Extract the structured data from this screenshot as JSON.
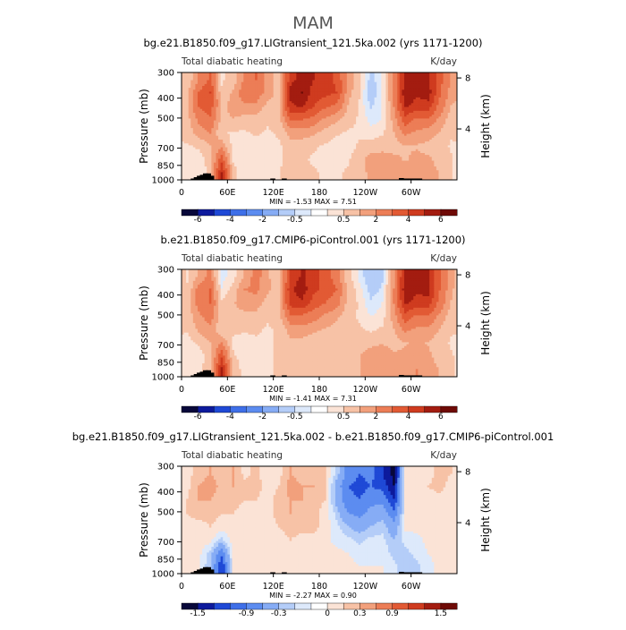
{
  "main_title": "MAM",
  "colors": {
    "text": "#000000",
    "axis": "#000000",
    "terrain": "#000000"
  },
  "chart_data": [
    {
      "type": "heatmap",
      "title": "bg.e21.B1850.f09_g17.LIGtransient_121.5ka.002 (yrs 1171-1200)",
      "left_label": "Total diabatic heating",
      "right_label": "K/day",
      "ylabel": "Pressure (mb)",
      "ylabel_right": "Height (km)",
      "x_ticks": [
        "0",
        "60E",
        "120E",
        "180",
        "120W",
        "60W"
      ],
      "x_tick_values": [
        0,
        60,
        120,
        180,
        240,
        300
      ],
      "xlim": [
        0,
        360
      ],
      "y_ticks": [
        "300",
        "400",
        "500",
        "700",
        "850",
        "1000"
      ],
      "y_tick_values": [
        300,
        400,
        500,
        700,
        850,
        1000
      ],
      "ylim": [
        1000,
        300
      ],
      "y_scale": "log",
      "height_ticks": [
        "8",
        "4"
      ],
      "height_tick_values": [
        8,
        4
      ],
      "stats": "MIN =   -1.53   MAX =    7.51",
      "colorbar": {
        "labels": [
          "-6",
          "-4",
          "-2",
          "-0.5",
          "0.5",
          "2",
          "4",
          "6"
        ],
        "colors": [
          "#08083a",
          "#0d1a9c",
          "#1f49d6",
          "#3e6fe8",
          "#5c8cf0",
          "#86acf5",
          "#b4cdf8",
          "#dde9fb",
          "#ffffff",
          "#fbe3d6",
          "#f7c2a6",
          "#f2a07c",
          "#ec7d56",
          "#e25a34",
          "#cf3b1f",
          "#a31c10",
          "#6e0a06"
        ]
      },
      "pattern": [
        [
          0.6,
          2.0,
          3.2,
          0.4,
          0.8,
          2.2,
          3.0,
          1.6,
          0.8,
          4.6,
          5.6,
          5.0,
          4.6,
          3.8,
          1.8,
          0.8,
          -0.8,
          0.0,
          2.2,
          5.4,
          5.0,
          5.0,
          3.4,
          1.8
        ],
        [
          1.0,
          3.0,
          4.0,
          0.6,
          1.4,
          2.6,
          2.6,
          1.6,
          1.0,
          5.4,
          6.0,
          4.6,
          4.4,
          4.0,
          1.6,
          0.6,
          -1.0,
          0.0,
          2.2,
          5.8,
          5.2,
          5.6,
          3.2,
          1.6
        ],
        [
          1.2,
          3.0,
          3.6,
          1.0,
          1.6,
          1.8,
          1.8,
          1.0,
          1.2,
          4.8,
          5.2,
          4.0,
          3.2,
          2.8,
          1.2,
          0.4,
          -0.6,
          0.0,
          2.0,
          5.2,
          4.6,
          4.6,
          2.6,
          1.2
        ],
        [
          1.0,
          2.2,
          2.8,
          1.0,
          1.2,
          1.0,
          1.0,
          0.6,
          1.0,
          3.0,
          3.0,
          2.6,
          1.8,
          1.4,
          0.8,
          0.4,
          -0.2,
          0.0,
          1.6,
          3.6,
          2.8,
          2.8,
          1.8,
          0.8
        ],
        [
          0.8,
          1.6,
          2.0,
          0.6,
          0.4,
          0.4,
          0.6,
          0.4,
          0.6,
          1.6,
          1.6,
          1.4,
          1.0,
          0.6,
          0.4,
          0.4,
          0.2,
          0.4,
          1.2,
          2.2,
          1.8,
          1.6,
          1.2,
          0.6
        ],
        [
          0.4,
          0.6,
          1.2,
          1.8,
          0.2,
          0.0,
          0.2,
          0.2,
          0.4,
          0.8,
          0.8,
          0.6,
          0.4,
          0.2,
          0.2,
          0.6,
          0.8,
          1.0,
          1.0,
          1.2,
          1.2,
          1.0,
          0.8,
          0.4
        ],
        [
          0.0,
          0.2,
          0.8,
          3.6,
          0.4,
          0.0,
          0.2,
          0.2,
          0.4,
          0.8,
          0.6,
          0.4,
          0.2,
          0.2,
          0.4,
          1.0,
          1.6,
          1.6,
          1.4,
          1.2,
          1.4,
          1.4,
          1.0,
          0.6
        ],
        [
          0.0,
          0.2,
          0.6,
          5.2,
          0.8,
          0.0,
          0.2,
          0.2,
          0.4,
          1.0,
          0.8,
          0.6,
          0.4,
          0.4,
          0.6,
          1.0,
          1.4,
          1.6,
          1.6,
          1.6,
          1.8,
          1.6,
          1.2,
          0.6
        ]
      ],
      "terrain_columns": [
        [
          4,
          998
        ],
        [
          8,
          998
        ],
        [
          12,
          985
        ],
        [
          16,
          970
        ],
        [
          20,
          955
        ],
        [
          24,
          945
        ],
        [
          28,
          930
        ],
        [
          32,
          930
        ],
        [
          36,
          955
        ],
        [
          116,
          985
        ],
        [
          131,
          985
        ],
        [
          284,
          980
        ],
        [
          290,
          985
        ],
        [
          296,
          985
        ],
        [
          302,
          985
        ],
        [
          308,
          985
        ]
      ]
    },
    {
      "type": "heatmap",
      "title": "b.e21.B1850.f09_g17.CMIP6-piControl.001 (yrs 1171-1200)",
      "left_label": "Total diabatic heating",
      "right_label": "K/day",
      "ylabel": "Pressure (mb)",
      "ylabel_right": "Height (km)",
      "x_ticks": [
        "0",
        "60E",
        "120E",
        "180",
        "120W",
        "60W"
      ],
      "x_tick_values": [
        0,
        60,
        120,
        180,
        240,
        300
      ],
      "xlim": [
        0,
        360
      ],
      "y_ticks": [
        "300",
        "400",
        "500",
        "700",
        "850",
        "1000"
      ],
      "y_tick_values": [
        300,
        400,
        500,
        700,
        850,
        1000
      ],
      "ylim": [
        1000,
        300
      ],
      "y_scale": "log",
      "height_ticks": [
        "8",
        "4"
      ],
      "height_tick_values": [
        8,
        4
      ],
      "stats": "MIN =   -1.41   MAX =    7.31",
      "colorbar": {
        "labels": [
          "-6",
          "-4",
          "-2",
          "-0.5",
          "0.5",
          "2",
          "4",
          "6"
        ],
        "colors": [
          "#08083a",
          "#0d1a9c",
          "#1f49d6",
          "#3e6fe8",
          "#5c8cf0",
          "#86acf5",
          "#b4cdf8",
          "#dde9fb",
          "#ffffff",
          "#fbe3d6",
          "#f7c2a6",
          "#f2a07c",
          "#ec7d56",
          "#e25a34",
          "#cf3b1f",
          "#a31c10",
          "#6e0a06"
        ]
      },
      "pattern": [
        [
          0.4,
          1.4,
          2.2,
          -0.2,
          0.2,
          1.4,
          2.4,
          1.4,
          0.6,
          4.2,
          5.2,
          4.4,
          3.6,
          2.4,
          0.8,
          -0.2,
          -1.0,
          -0.6,
          1.8,
          5.4,
          5.0,
          5.0,
          3.2,
          1.6
        ],
        [
          0.6,
          2.4,
          3.0,
          0.0,
          0.8,
          2.0,
          2.2,
          1.4,
          0.8,
          4.8,
          5.6,
          4.2,
          3.8,
          3.0,
          1.0,
          0.2,
          -0.8,
          -0.4,
          2.0,
          5.8,
          5.2,
          5.4,
          3.0,
          1.4
        ],
        [
          0.8,
          2.4,
          3.0,
          0.6,
          1.2,
          1.6,
          1.6,
          1.0,
          1.0,
          4.4,
          4.8,
          3.6,
          3.0,
          2.4,
          1.0,
          0.4,
          -0.4,
          0.0,
          2.0,
          5.2,
          4.6,
          4.6,
          2.6,
          1.2
        ],
        [
          0.8,
          1.8,
          2.4,
          0.8,
          1.0,
          1.0,
          1.0,
          0.6,
          1.0,
          2.8,
          2.8,
          2.4,
          1.8,
          1.4,
          0.8,
          0.4,
          0.0,
          0.2,
          1.6,
          3.6,
          2.8,
          2.8,
          1.8,
          0.8
        ],
        [
          0.6,
          1.4,
          1.8,
          0.6,
          0.6,
          0.6,
          0.6,
          0.4,
          0.6,
          1.6,
          1.6,
          1.4,
          1.2,
          1.0,
          0.6,
          0.6,
          0.4,
          0.6,
          1.2,
          2.2,
          1.8,
          1.8,
          1.2,
          0.6
        ],
        [
          0.2,
          0.6,
          1.2,
          2.0,
          0.4,
          0.2,
          0.4,
          0.4,
          0.6,
          1.0,
          1.0,
          0.8,
          0.8,
          0.6,
          0.6,
          0.8,
          1.0,
          1.2,
          1.0,
          1.2,
          1.4,
          1.2,
          0.8,
          0.4
        ],
        [
          0.2,
          0.2,
          0.8,
          3.8,
          0.6,
          0.2,
          0.4,
          0.4,
          0.6,
          1.0,
          0.8,
          0.6,
          0.6,
          0.6,
          0.8,
          1.2,
          1.8,
          1.8,
          1.4,
          1.4,
          1.6,
          1.4,
          1.0,
          0.6
        ],
        [
          0.2,
          0.4,
          0.8,
          5.2,
          1.0,
          0.2,
          0.4,
          0.4,
          0.6,
          1.2,
          1.0,
          0.8,
          0.6,
          0.6,
          0.8,
          1.2,
          1.6,
          1.8,
          1.8,
          1.8,
          2.0,
          1.6,
          1.2,
          0.6
        ]
      ],
      "terrain_columns": [
        [
          4,
          998
        ],
        [
          8,
          998
        ],
        [
          12,
          985
        ],
        [
          16,
          970
        ],
        [
          20,
          955
        ],
        [
          24,
          945
        ],
        [
          28,
          930
        ],
        [
          32,
          930
        ],
        [
          36,
          955
        ],
        [
          116,
          985
        ],
        [
          131,
          985
        ],
        [
          284,
          980
        ],
        [
          290,
          985
        ],
        [
          296,
          985
        ],
        [
          302,
          985
        ],
        [
          308,
          985
        ]
      ]
    },
    {
      "type": "heatmap",
      "title": "bg.e21.B1850.f09_g17.LIGtransient_121.5ka.002 - b.e21.B1850.f09_g17.CMIP6-piControl.001",
      "left_label": "Total diabatic heating",
      "right_label": "K/day",
      "ylabel": "Pressure (mb)",
      "ylabel_right": "Height (km)",
      "x_ticks": [
        "0",
        "60E",
        "120E",
        "180",
        "120W",
        "60W"
      ],
      "x_tick_values": [
        0,
        60,
        120,
        180,
        240,
        300
      ],
      "xlim": [
        0,
        360
      ],
      "y_ticks": [
        "300",
        "400",
        "500",
        "700",
        "850",
        "1000"
      ],
      "y_tick_values": [
        300,
        400,
        500,
        700,
        850,
        1000
      ],
      "ylim": [
        1000,
        300
      ],
      "y_scale": "log",
      "height_ticks": [
        "8",
        "4"
      ],
      "height_tick_values": [
        8,
        4
      ],
      "stats": "MIN =   -2.27   MAX =    0.90",
      "colorbar": {
        "labels": [
          "-1.5",
          "-0.9",
          "-0.3",
          "0",
          "0.3",
          "0.9",
          "1.5"
        ],
        "colors": [
          "#08083a",
          "#0d1a9c",
          "#1f49d6",
          "#3e6fe8",
          "#5c8cf0",
          "#86acf5",
          "#b4cdf8",
          "#dde9fb",
          "#ffffff",
          "#fbe3d6",
          "#f7c2a6",
          "#f2a07c",
          "#ec7d56",
          "#e25a34",
          "#cf3b1f",
          "#a31c10",
          "#6e0a06"
        ]
      },
      "pattern": [
        [
          0.1,
          0.2,
          0.3,
          0.2,
          0.3,
          0.1,
          0.2,
          0.05,
          0.1,
          0.3,
          0.2,
          0.25,
          0.2,
          -0.2,
          -0.7,
          -0.9,
          -0.8,
          -1.2,
          -1.6,
          0.1,
          0.05,
          0.1,
          0.2,
          0.15
        ],
        [
          0.1,
          0.3,
          0.4,
          0.25,
          0.3,
          0.2,
          0.2,
          0.1,
          0.15,
          0.4,
          0.3,
          0.3,
          0.15,
          -0.4,
          -0.9,
          -1.0,
          -0.9,
          -1.0,
          -1.5,
          0.1,
          0.1,
          0.15,
          0.2,
          0.1
        ],
        [
          0.15,
          0.3,
          0.3,
          0.2,
          0.2,
          0.15,
          0.15,
          0.1,
          0.2,
          0.3,
          0.3,
          0.2,
          0.15,
          -0.4,
          -0.8,
          -0.9,
          -0.7,
          -0.7,
          -1.2,
          0.05,
          0.05,
          0.1,
          0.1,
          0.05
        ],
        [
          0.15,
          0.2,
          0.2,
          0.15,
          0.15,
          0.1,
          0.1,
          0.1,
          0.2,
          0.3,
          0.2,
          0.2,
          0.1,
          -0.2,
          -0.6,
          -0.7,
          -0.5,
          -0.4,
          -0.8,
          0.0,
          0.05,
          0.05,
          0.05,
          0.05
        ],
        [
          0.1,
          0.1,
          0.15,
          0.1,
          0.1,
          0.05,
          0.1,
          0.1,
          0.15,
          0.2,
          0.2,
          0.2,
          0.1,
          -0.1,
          -0.3,
          -0.4,
          -0.3,
          -0.2,
          -0.5,
          0.05,
          0.05,
          0.05,
          0.05,
          0.05
        ],
        [
          0.05,
          0.1,
          0.05,
          -0.2,
          0.1,
          0.05,
          0.1,
          0.1,
          0.1,
          0.15,
          0.1,
          0.1,
          0.05,
          -0.05,
          -0.1,
          -0.2,
          -0.1,
          -0.1,
          -0.3,
          -0.1,
          -0.05,
          0.05,
          0.05,
          0.05
        ],
        [
          0.05,
          0.05,
          -0.2,
          -0.8,
          0.05,
          0.05,
          0.05,
          0.1,
          0.1,
          0.1,
          0.1,
          0.05,
          0.05,
          0.05,
          0.0,
          -0.05,
          -0.05,
          -0.05,
          -0.2,
          -0.2,
          -0.1,
          0.0,
          0.05,
          0.05
        ],
        [
          0.05,
          0.05,
          -0.3,
          -1.2,
          0.05,
          0.05,
          0.05,
          0.1,
          0.1,
          0.1,
          0.1,
          0.05,
          0.05,
          0.05,
          0.05,
          0.0,
          0.0,
          0.0,
          -0.1,
          -0.3,
          -0.2,
          -0.05,
          0.05,
          0.05
        ]
      ],
      "terrain_columns": [
        [
          4,
          998
        ],
        [
          8,
          998
        ],
        [
          12,
          985
        ],
        [
          16,
          970
        ],
        [
          20,
          955
        ],
        [
          24,
          945
        ],
        [
          28,
          930
        ],
        [
          32,
          930
        ],
        [
          36,
          955
        ],
        [
          116,
          985
        ],
        [
          131,
          985
        ],
        [
          284,
          980
        ],
        [
          290,
          985
        ],
        [
          296,
          985
        ],
        [
          302,
          985
        ],
        [
          308,
          985
        ]
      ]
    }
  ]
}
